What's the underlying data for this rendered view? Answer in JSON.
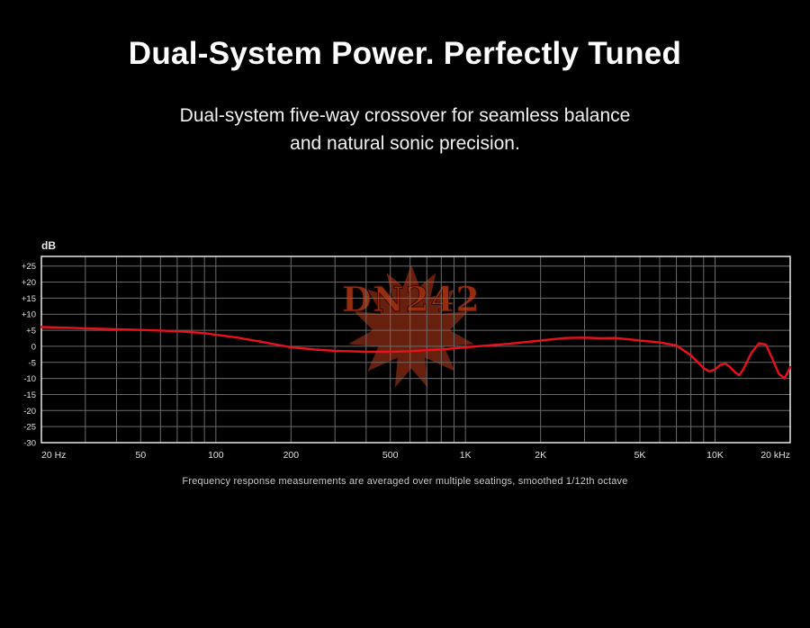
{
  "page": {
    "title": "Dual-System Power. Perfectly Tuned",
    "subtitle_line1": "Dual-system five-way crossover for seamless balance",
    "subtitle_line2": "and natural sonic precision.",
    "caption": "Frequency response measurements are averaged over multiple seatings, smoothed 1/12th octave"
  },
  "watermark": {
    "text": "DN242",
    "leaf_color": "#7a2611",
    "text_color": "#a03010"
  },
  "chart_data": {
    "type": "line",
    "title": "",
    "xlabel": "",
    "ylabel": "dB",
    "x_scale": "log",
    "xlim": [
      20,
      20000
    ],
    "ylim": [
      -30,
      28
    ],
    "grid": true,
    "legend": "none",
    "y_ticks": [
      25,
      20,
      15,
      10,
      5,
      0,
      -5,
      -10,
      -15,
      -20,
      -25,
      -30
    ],
    "x_ticks": [
      {
        "f": 20,
        "label": "20 Hz"
      },
      {
        "f": 50,
        "label": "50"
      },
      {
        "f": 100,
        "label": "100"
      },
      {
        "f": 200,
        "label": "200"
      },
      {
        "f": 500,
        "label": "500"
      },
      {
        "f": 1000,
        "label": "1K"
      },
      {
        "f": 2000,
        "label": "2K"
      },
      {
        "f": 5000,
        "label": "5K"
      },
      {
        "f": 10000,
        "label": "10K"
      },
      {
        "f": 20000,
        "label": "20 kHz"
      }
    ],
    "colors": {
      "grid": "#6b6b6b",
      "border": "#e8e8e8",
      "tick_label": "#e0e0e0",
      "curve": "#e8111c"
    },
    "series": [
      {
        "name": "frequency-response",
        "color": "#e8111c",
        "x": [
          20,
          25,
          30,
          40,
          50,
          60,
          70,
          80,
          90,
          100,
          120,
          150,
          200,
          250,
          300,
          400,
          500,
          600,
          700,
          800,
          1000,
          1200,
          1500,
          2000,
          2500,
          3000,
          3500,
          4000,
          4500,
          5000,
          6000,
          7000,
          8000,
          9000,
          9500,
          10000,
          10500,
          11000,
          11500,
          12000,
          12500,
          13000,
          14000,
          15000,
          16000,
          17000,
          18000,
          19000,
          20000
        ],
        "y": [
          6,
          5.8,
          5.6,
          5.3,
          5.1,
          4.9,
          4.7,
          4.4,
          4.1,
          3.6,
          2.8,
          1.5,
          -0.3,
          -1.0,
          -1.4,
          -1.7,
          -1.7,
          -1.5,
          -1.2,
          -1.0,
          -0.3,
          0.2,
          0.8,
          1.8,
          2.6,
          2.7,
          2.5,
          2.6,
          2.2,
          1.8,
          1.2,
          0.3,
          -2.8,
          -6.8,
          -7.8,
          -7.2,
          -5.8,
          -5.4,
          -6.5,
          -8.0,
          -9.0,
          -7.0,
          -2.0,
          1.0,
          0.5,
          -4.0,
          -8.5,
          -10.0,
          -6.5
        ]
      }
    ]
  }
}
